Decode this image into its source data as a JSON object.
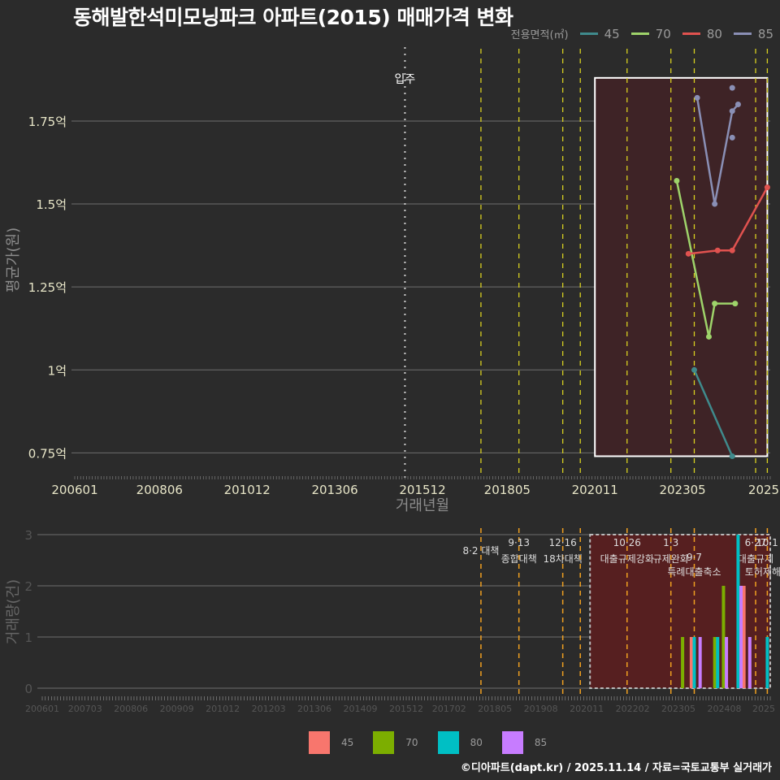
{
  "title": "동해발한석미모닝파크 아파트(2015) 매매가격 변화",
  "legend_top": {
    "label": "전용면적(㎡)",
    "items": [
      {
        "name": "45",
        "color": "#3f8a8c"
      },
      {
        "name": "70",
        "color": "#9ed36a"
      },
      {
        "name": "80",
        "color": "#e0524f"
      },
      {
        "name": "85",
        "color": "#8a8fb5"
      }
    ]
  },
  "legend_bottom": {
    "items": [
      {
        "name": "45",
        "color": "#f8766d"
      },
      {
        "name": "70",
        "color": "#7cae00"
      },
      {
        "name": "80",
        "color": "#00bfc4"
      },
      {
        "name": "85",
        "color": "#c77cff"
      }
    ]
  },
  "footer": "©디아파트(dapt.kr) / 2025.11.14 / 자료=국토교통부 실거래가",
  "chart_data": [
    {
      "type": "line",
      "title": "동해발한석미모닝파크 아파트(2015) 매매가격 변화",
      "xlabel": "거래년월",
      "ylabel": "평균가(원)",
      "x_ticks": [
        "200601",
        "200806",
        "201012",
        "201306",
        "201512",
        "201805",
        "202011",
        "202305",
        "2025"
      ],
      "y_ticks": [
        "0.75억",
        "1억",
        "1.25억",
        "1.5억",
        "1.75억"
      ],
      "ylim": [
        0.68,
        1.98
      ],
      "grid": true,
      "legend_position": "top-right",
      "annotations": [
        {
          "label": "입주",
          "x": "201506"
        }
      ],
      "highlight_box": {
        "x_from": "202011",
        "x_to": "202510",
        "y_from": 0.74,
        "y_to": 1.88
      },
      "series": [
        {
          "name": "45",
          "points": [
            [
              "202309",
              1.0
            ],
            [
              "202410",
              0.74
            ]
          ]
        },
        {
          "name": "70",
          "points": [
            [
              "202303",
              1.57
            ],
            [
              "202402",
              1.1
            ],
            [
              "202404",
              1.2
            ],
            [
              "202411",
              1.2
            ]
          ]
        },
        {
          "name": "80",
          "points": [
            [
              "202307",
              1.35
            ],
            [
              "202405",
              1.36
            ],
            [
              "202410",
              1.36
            ],
            [
              "202510",
              1.55
            ]
          ]
        },
        {
          "name": "85",
          "points": [
            [
              "202310",
              1.82
            ],
            [
              "202404",
              1.5
            ],
            [
              "202410",
              1.78
            ],
            [
              "202412",
              1.8
            ]
          ],
          "extra_points": [
            [
              "202410",
              1.85
            ],
            [
              "202410",
              1.7
            ]
          ]
        }
      ]
    },
    {
      "type": "bar",
      "xlabel": "",
      "ylabel": "거래량(건)",
      "x_ticks": [
        "200601",
        "200703",
        "200806",
        "200909",
        "201012",
        "201203",
        "201306",
        "201409",
        "201512",
        "201702",
        "201805",
        "201908",
        "202011",
        "202202",
        "202305",
        "202408",
        "2025"
      ],
      "y_ticks": [
        "0",
        "1",
        "2",
        "3"
      ],
      "ylim": [
        0,
        3
      ],
      "policy_lines": [
        {
          "date": "201708",
          "label_top": "",
          "label": "8·2 대책"
        },
        {
          "date": "201809",
          "label_top": "9·13",
          "label": "종합대책"
        },
        {
          "date": "201912",
          "label_top": "12·16",
          "label": "18차대책"
        },
        {
          "date": "202006",
          "label_top": "",
          "label": ""
        },
        {
          "date": "202110",
          "label_top": "10·26",
          "label": "대출규제강화"
        },
        {
          "date": "202301",
          "label_top": "1·3",
          "label": "규제완화"
        },
        {
          "date": "202309",
          "label_top": "9·7",
          "label": "특례대출축소"
        },
        {
          "date": "202506",
          "label_top": "6·27",
          "label": "대출규제"
        },
        {
          "date": "202510",
          "label_top": "10·1",
          "label": "토허제해제"
        }
      ],
      "series": [
        {
          "name": "45",
          "bars": [
            [
              "202308",
              1
            ],
            [
              "202502",
              2
            ]
          ]
        },
        {
          "name": "70",
          "bars": [
            [
              "202305",
              1
            ],
            [
              "202404",
              1
            ],
            [
              "202407",
              2
            ],
            [
              "202412",
              1
            ]
          ]
        },
        {
          "name": "80",
          "bars": [
            [
              "202309",
              1
            ],
            [
              "202405",
              1
            ],
            [
              "202412",
              3
            ],
            [
              "202510",
              1
            ]
          ]
        },
        {
          "name": "85",
          "bars": [
            [
              "202311",
              1
            ],
            [
              "202408",
              1
            ],
            [
              "202501",
              2
            ],
            [
              "202504",
              1
            ]
          ]
        }
      ]
    }
  ]
}
